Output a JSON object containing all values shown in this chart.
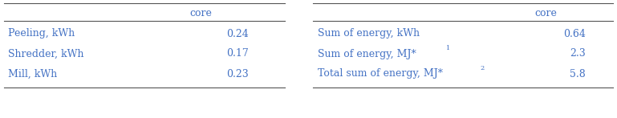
{
  "left_header": "core",
  "left_rows": [
    [
      "Peeling, kWh",
      "0.24"
    ],
    [
      "Shredder, kWh",
      "0.17"
    ],
    [
      "Mill, kWh",
      "0.23"
    ]
  ],
  "right_header": "core",
  "right_labels_base": [
    "Sum of energy, kWh",
    "Sum of energy, MJ*",
    "Total sum of energy, MJ*"
  ],
  "right_sups": [
    "",
    "1",
    "2"
  ],
  "right_vals": [
    "0.64",
    "2.3",
    "5.8"
  ],
  "text_color": "#4472C4",
  "line_color": "#555555",
  "bg_color": "#ffffff",
  "fontsize": 9.0
}
